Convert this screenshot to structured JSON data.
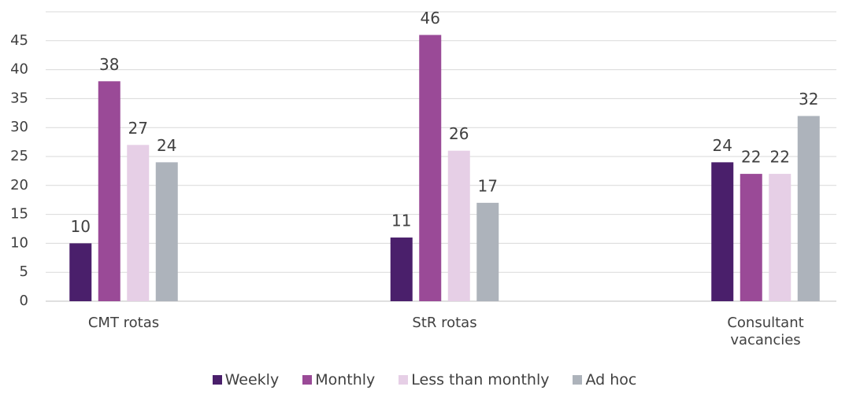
{
  "chart_data": {
    "type": "bar",
    "categories": [
      "CMT rotas",
      "StR rotas",
      "Consultant vacancies"
    ],
    "series": [
      {
        "name": "Weekly",
        "color": "#4a1f6b",
        "values": [
          10,
          11,
          24
        ]
      },
      {
        "name": "Monthly",
        "color": "#9a4a97",
        "values": [
          38,
          46,
          22
        ]
      },
      {
        "name": "Less than monthly",
        "color": "#e6cfe6",
        "values": [
          27,
          26,
          22
        ]
      },
      {
        "name": "Ad hoc",
        "color": "#adb3bb",
        "values": [
          24,
          17,
          32
        ]
      }
    ],
    "ylim": [
      0,
      50
    ],
    "yticks": [
      0,
      5,
      10,
      15,
      20,
      25,
      30,
      35,
      40,
      45
    ],
    "grid": true,
    "legend": "bottom"
  }
}
